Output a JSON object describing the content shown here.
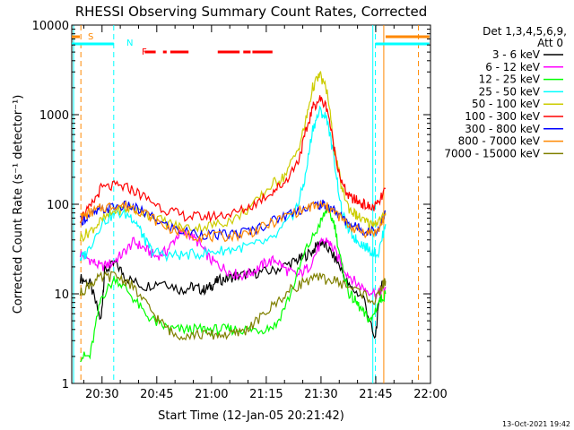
{
  "chart_data": {
    "type": "line",
    "title": "RHESSI Observing Summary Count Rates, Corrected",
    "xlabel": "Start Time (12-Jan-05 20:21:42)",
    "ylabel": "Corrected Count Rate (s⁻¹ detector⁻¹)",
    "yscale": "log",
    "xlim": [
      "20:21:42",
      "22:00:00"
    ],
    "ylim": [
      1,
      10000
    ],
    "x_ticks": [
      "20:30",
      "20:45",
      "21:00",
      "21:15",
      "21:30",
      "21:45",
      "22:00"
    ],
    "y_ticks": [
      "1",
      "10",
      "100",
      "1000",
      "10000"
    ],
    "grid": false,
    "legend_position": "right",
    "legend_header": [
      "Det 1,3,4,5,6,9,",
      "Att 0"
    ],
    "footer_date": "13-Oct-2021 19:42",
    "markers": [
      {
        "label": "S",
        "color": "#ff8800"
      },
      {
        "label": "N",
        "color": "#00ffff"
      },
      {
        "label": "F",
        "color": "#ff0000"
      }
    ],
    "x_unit": "minutes after 20:21:42",
    "series": [
      {
        "name": "3 - 6 keV",
        "color": "#000000",
        "x": [
          2.3,
          5,
          8,
          9,
          12,
          15,
          20,
          25,
          30,
          33,
          36,
          38,
          40,
          43,
          46,
          50,
          55,
          60,
          63,
          66,
          68,
          70,
          73,
          76,
          80,
          83,
          85
        ],
        "y": [
          15,
          13,
          5,
          18,
          22,
          15,
          12,
          14,
          11,
          12,
          11,
          12,
          14,
          15,
          16,
          17,
          18,
          22,
          25,
          30,
          38,
          33,
          22,
          12,
          9,
          3,
          14
        ]
      },
      {
        "name": "6 - 12 keV",
        "color": "#ff00ff",
        "x": [
          2.3,
          5,
          8,
          11,
          14,
          17,
          20,
          23,
          26,
          29,
          32,
          35,
          38,
          41,
          44,
          47,
          50,
          53,
          56,
          59,
          62,
          65,
          68,
          70,
          72,
          75,
          78,
          81,
          84,
          86
        ],
        "y": [
          28,
          24,
          20,
          22,
          28,
          38,
          32,
          26,
          30,
          45,
          48,
          36,
          24,
          20,
          17,
          16,
          18,
          22,
          24,
          18,
          16,
          20,
          35,
          40,
          30,
          18,
          13,
          11,
          10,
          12
        ]
      },
      {
        "name": "12 - 25 keV",
        "color": "#00ff00",
        "x": [
          2.3,
          5,
          8,
          12,
          16,
          20,
          24,
          28,
          32,
          36,
          40,
          44,
          48,
          52,
          56,
          60,
          64,
          68,
          70,
          72,
          74,
          76,
          78,
          80,
          82,
          84,
          86
        ],
        "y": [
          2,
          2,
          9,
          15,
          10,
          6,
          4.5,
          4,
          4,
          4,
          4,
          4,
          4,
          4,
          4.5,
          10,
          30,
          60,
          90,
          60,
          20,
          10,
          8,
          6,
          5,
          8,
          10
        ]
      },
      {
        "name": "25 - 50 keV",
        "color": "#00ffff",
        "x": [
          2.3,
          4,
          8,
          12,
          16,
          18,
          20,
          22,
          26,
          30,
          35,
          40,
          45,
          50,
          55,
          60,
          62,
          64,
          66,
          68,
          70,
          72,
          74,
          76,
          78,
          80,
          82,
          84,
          86
        ],
        "y": [
          25,
          28,
          60,
          80,
          75,
          60,
          40,
          30,
          27,
          27,
          28,
          30,
          32,
          35,
          40,
          70,
          100,
          200,
          700,
          1100,
          900,
          300,
          80,
          50,
          40,
          35,
          30,
          28,
          60
        ]
      },
      {
        "name": "50 - 100 keV",
        "color": "#cccc00",
        "x": [
          2.3,
          5,
          8,
          12,
          16,
          20,
          25,
          30,
          35,
          40,
          45,
          50,
          55,
          58,
          62,
          64,
          66,
          68,
          70,
          72,
          74,
          76,
          78,
          80,
          82,
          84,
          86
        ],
        "y": [
          42,
          50,
          65,
          85,
          90,
          80,
          65,
          55,
          55,
          60,
          70,
          100,
          170,
          200,
          400,
          800,
          2000,
          2800,
          1800,
          400,
          150,
          90,
          75,
          65,
          60,
          65,
          75
        ]
      },
      {
        "name": "100 - 300 keV",
        "color": "#ff0000",
        "x": [
          2.3,
          5,
          8,
          12,
          16,
          20,
          25,
          30,
          35,
          40,
          45,
          50,
          55,
          58,
          62,
          64,
          66,
          68,
          70,
          72,
          74,
          76,
          78,
          80,
          82,
          84,
          86
        ],
        "y": [
          70,
          90,
          150,
          160,
          150,
          120,
          90,
          75,
          72,
          75,
          80,
          100,
          140,
          170,
          300,
          600,
          1200,
          1500,
          1200,
          400,
          170,
          120,
          110,
          100,
          90,
          100,
          150
        ]
      },
      {
        "name": "300 - 800 keV",
        "color": "#0000ff",
        "x": [
          2.3,
          5,
          8,
          12,
          16,
          20,
          25,
          30,
          35,
          40,
          45,
          50,
          55,
          60,
          65,
          68,
          70,
          72,
          75,
          78,
          81,
          84,
          86
        ],
        "y": [
          65,
          75,
          85,
          95,
          95,
          80,
          60,
          50,
          47,
          45,
          47,
          52,
          65,
          80,
          95,
          100,
          95,
          85,
          65,
          55,
          50,
          52,
          85
        ]
      },
      {
        "name": "800 - 7000 keV",
        "color": "#ff8800",
        "x": [
          2.3,
          5,
          8,
          12,
          16,
          20,
          25,
          30,
          35,
          40,
          45,
          50,
          55,
          60,
          65,
          68,
          70,
          72,
          75,
          78,
          81,
          84,
          86
        ],
        "y": [
          70,
          80,
          90,
          98,
          95,
          80,
          58,
          48,
          44,
          43,
          45,
          50,
          62,
          78,
          92,
          98,
          92,
          82,
          62,
          52,
          48,
          50,
          80
        ]
      },
      {
        "name": "7000 - 15000 keV",
        "color": "#808000",
        "x": [
          2.3,
          5,
          8,
          12,
          16,
          20,
          24,
          28,
          32,
          36,
          40,
          44,
          48,
          52,
          56,
          60,
          64,
          68,
          72,
          76,
          80,
          83,
          85,
          86
        ],
        "y": [
          10,
          13,
          15,
          16,
          13,
          8,
          5,
          3.5,
          3.5,
          3.5,
          3.5,
          3.5,
          4,
          5.5,
          8,
          11,
          14,
          15,
          14,
          12,
          10,
          8,
          12,
          14
        ]
      }
    ]
  }
}
